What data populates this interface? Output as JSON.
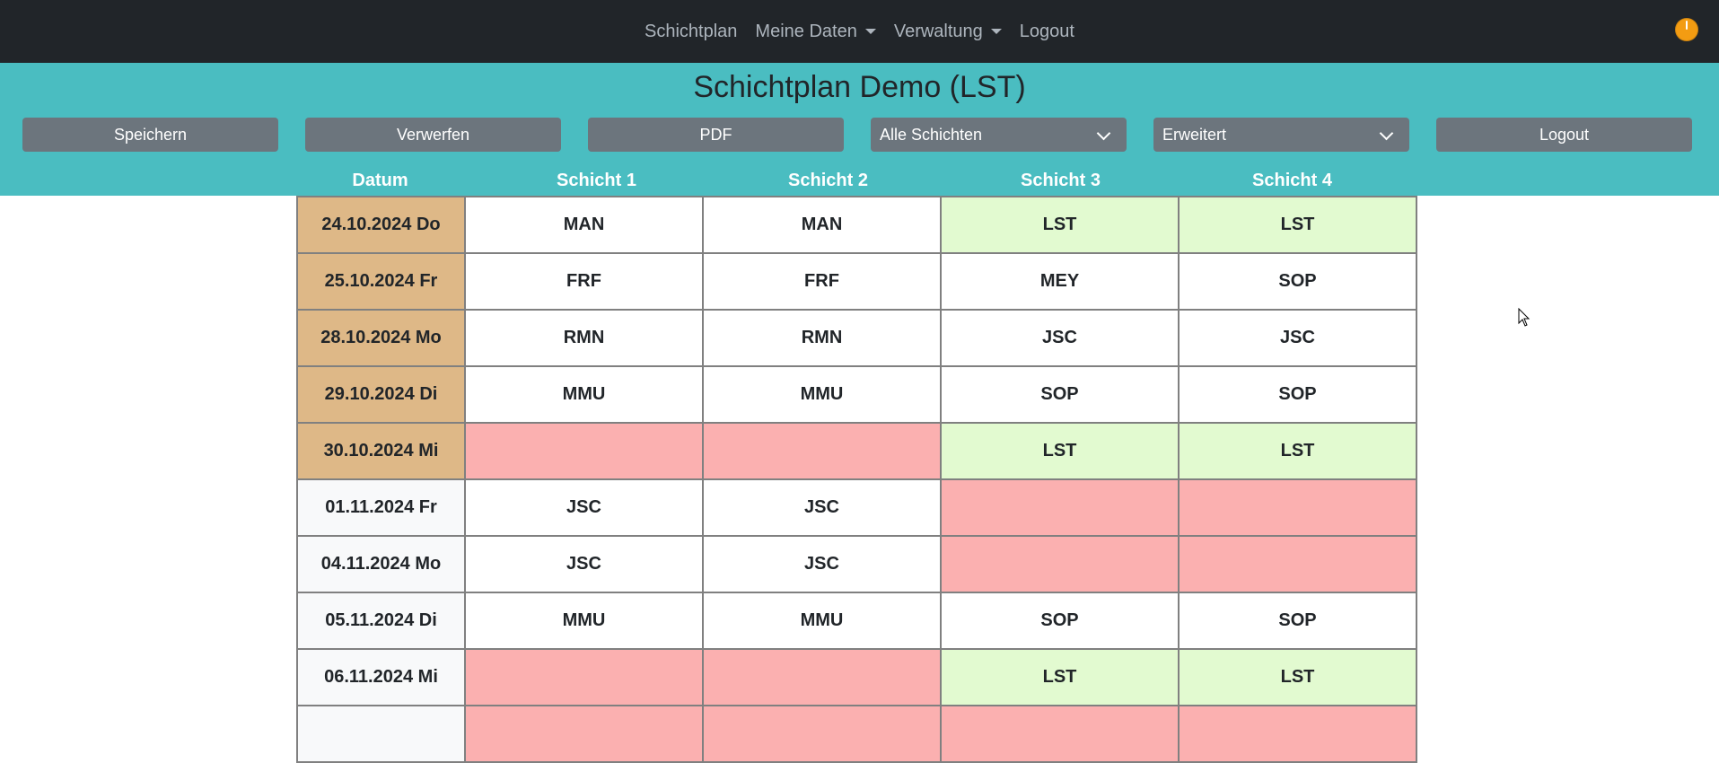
{
  "nav": {
    "items": [
      {
        "label": "Schichtplan",
        "dropdown": false
      },
      {
        "label": "Meine Daten",
        "dropdown": true
      },
      {
        "label": "Verwaltung",
        "dropdown": true
      },
      {
        "label": "Logout",
        "dropdown": false
      }
    ],
    "status_color": "#f39c12"
  },
  "header": {
    "title": "Schichtplan Demo (LST)",
    "background": "#4abdc1"
  },
  "toolbar": {
    "save_label": "Speichern",
    "discard_label": "Verwerfen",
    "pdf_label": "PDF",
    "shift_filter": {
      "selected": "Alle Schichten"
    },
    "mode_select": {
      "selected": "Erweitert"
    },
    "logout_label": "Logout"
  },
  "table": {
    "columns": [
      "Datum",
      "Schicht 1",
      "Schicht 2",
      "Schicht 3",
      "Schicht 4"
    ],
    "rows": [
      {
        "date": "24.10.2024 Do",
        "shifts": [
          "MAN",
          "MAN",
          "LST",
          "LST"
        ]
      },
      {
        "date": "25.10.2024 Fr",
        "shifts": [
          "FRF",
          "FRF",
          "MEY",
          "SOP"
        ]
      },
      {
        "date": "28.10.2024 Mo",
        "shifts": [
          "RMN",
          "RMN",
          "JSC",
          "JSC"
        ]
      },
      {
        "date": "29.10.2024 Di",
        "shifts": [
          "MMU",
          "MMU",
          "SOP",
          "SOP"
        ]
      },
      {
        "date": "30.10.2024 Mi",
        "shifts": [
          "",
          "",
          "LST",
          "LST"
        ]
      },
      {
        "date": "01.11.2024 Fr",
        "shifts": [
          "JSC",
          "JSC",
          "",
          ""
        ]
      },
      {
        "date": "04.11.2024 Mo",
        "shifts": [
          "JSC",
          "JSC",
          "",
          ""
        ]
      },
      {
        "date": "05.11.2024 Di",
        "shifts": [
          "MMU",
          "MMU",
          "SOP",
          "SOP"
        ]
      },
      {
        "date": "06.11.2024 Mi",
        "shifts": [
          "",
          "",
          "LST",
          "LST"
        ]
      },
      {
        "date": "",
        "shifts": [
          "",
          "",
          "",
          ""
        ]
      }
    ],
    "colors": {
      "past_date": "#deb887",
      "own_shift": "#e2fad0",
      "unassigned": "#fbb0b0",
      "normal": "#ffffff"
    }
  }
}
